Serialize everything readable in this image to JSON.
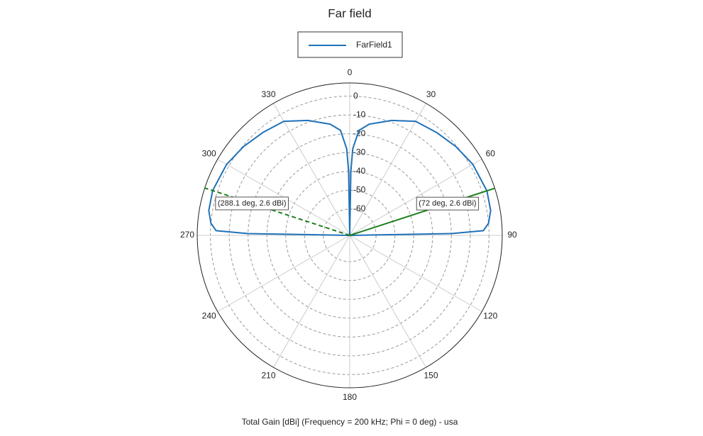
{
  "chart_data": {
    "type": "polar",
    "title": "Far field",
    "xlabel": "Total Gain [dBi] (Frequency = 200 kHz; Phi = 0 deg) - usa",
    "theta_direction": "clockwise",
    "theta_zero": "top",
    "thetaticks": [
      0,
      30,
      60,
      90,
      120,
      150,
      180,
      210,
      240,
      270,
      300,
      330
    ],
    "rlim": [
      -74,
      7
    ],
    "rticks": [
      0,
      -10,
      -20,
      -30,
      -40,
      -50,
      -60
    ],
    "grid": true,
    "legend": "top",
    "series": [
      {
        "name": "FarField1",
        "color": "#1f72b8",
        "theta": [
          270,
          271,
          272,
          275,
          280,
          288.1,
          300,
          310,
          320,
          330,
          340,
          350,
          355,
          358,
          359,
          0,
          1,
          2,
          5,
          10,
          20,
          30,
          40,
          50,
          60,
          72,
          80,
          85,
          88,
          89,
          90
        ],
        "values": [
          -74,
          -20,
          -3,
          0,
          2,
          2.6,
          1.5,
          -0.5,
          -2.5,
          -4,
          -9,
          -14,
          -18,
          -28,
          -40,
          -74,
          -40,
          -28,
          -18,
          -14,
          -9,
          -4,
          -2.5,
          -0.5,
          1.5,
          2.6,
          2,
          0,
          -3,
          -20,
          -74
        ]
      }
    ],
    "annotations": [
      {
        "theta": 72,
        "value": 2.6,
        "label": "(72 deg, 2.6 dBi)",
        "style": "solid",
        "color": "#1a7f1a"
      },
      {
        "theta": 288.1,
        "value": 2.6,
        "label": "(288.1 deg, 2.6 dBi)",
        "style": "dashed",
        "color": "#1a7f1a"
      }
    ]
  }
}
